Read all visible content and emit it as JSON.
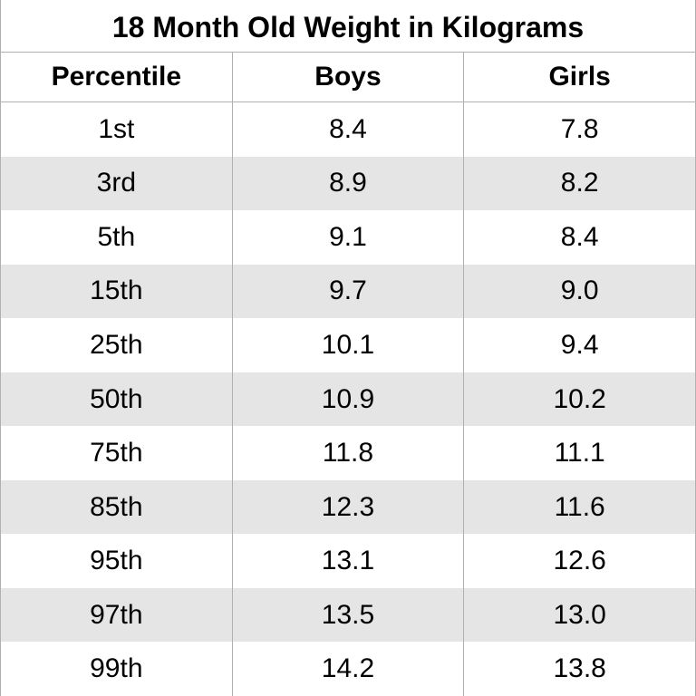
{
  "title": "18 Month Old Weight in Kilograms",
  "columns": [
    "Percentile",
    "Boys",
    "Girls"
  ],
  "rows": [
    [
      "1st",
      "8.4",
      "7.8"
    ],
    [
      "3rd",
      "8.9",
      "8.2"
    ],
    [
      "5th",
      "9.1",
      "8.4"
    ],
    [
      "15th",
      "9.7",
      "9.0"
    ],
    [
      "25th",
      "10.1",
      "9.4"
    ],
    [
      "50th",
      "10.9",
      "10.2"
    ],
    [
      "75th",
      "11.8",
      "11.1"
    ],
    [
      "85th",
      "12.3",
      "11.6"
    ],
    [
      "95th",
      "13.1",
      "12.6"
    ],
    [
      "97th",
      "13.5",
      "13.0"
    ],
    [
      "99th",
      "14.2",
      "13.8"
    ]
  ],
  "style": {
    "type": "table",
    "background_color": "#ffffff",
    "row_alt_color": "#e5e5e5",
    "border_color": "#b0b0b0",
    "text_color": "#000000",
    "title_fontsize": 32,
    "header_fontsize": 30,
    "cell_fontsize": 30,
    "font_family": "Arial",
    "title_weight": 700,
    "header_weight": 700,
    "cell_weight": 400,
    "column_widths_pct": [
      33.3,
      33.3,
      33.4
    ],
    "text_align": "center"
  }
}
